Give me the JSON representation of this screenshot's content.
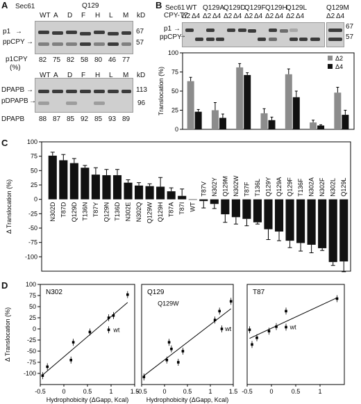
{
  "panelA": {
    "letter": "A",
    "sec61_label": "Sec61",
    "q129_label": "Q129",
    "kd_label": "kD",
    "lanes": [
      "WT",
      "A",
      "D",
      "F",
      "H",
      "L",
      "M"
    ],
    "blot1": {
      "p1_label": "p1",
      "ppcpy_label": "ppCPY",
      "mw_top": "67",
      "mw_bottom": "57",
      "quant_label_1": "p1CPY",
      "quant_label_2": "(%)",
      "quant_values": [
        "82",
        "75",
        "82",
        "58",
        "80",
        "46",
        "77"
      ]
    },
    "blot2": {
      "dpapb_label": "DPAPB",
      "pdpapb_label": "pDPAPB",
      "mw_top": "113",
      "mw_bottom": "96",
      "quant_label": "DPAPB",
      "quant_values": [
        "88",
        "87",
        "85",
        "92",
        "85",
        "93",
        "89"
      ]
    }
  },
  "panelB": {
    "letter": "B",
    "sec61_label": "Sec61",
    "cpy_label": "CPY-T7",
    "groups": [
      "WT",
      "Q129A",
      "Q129D",
      "Q129F",
      "Q129H",
      "Q129L",
      "Q129M"
    ],
    "sub_labels": [
      "Δ2",
      "Δ4"
    ],
    "p1_label": "p1",
    "ppcpy_label": "ppCPY",
    "mw_top": "67",
    "mw_bottom": "57",
    "legend": [
      "Δ2",
      "Δ4"
    ]
  },
  "panelC": {
    "letter": "C"
  },
  "panelD": {
    "letter": "D"
  },
  "colors": {
    "delta2": "#8c8c8c",
    "delta4": "#111111",
    "bar": "#111111"
  },
  "chart_data": [
    {
      "type": "bar",
      "panel": "B",
      "categories": [
        "WT",
        "Q129A",
        "Q129D",
        "Q129F",
        "Q129H",
        "Q129L",
        "Q129M"
      ],
      "series": [
        {
          "name": "Δ2",
          "values": [
            63,
            25,
            81,
            21,
            72,
            9,
            48
          ],
          "errors": [
            5,
            10,
            5,
            6,
            7,
            3,
            7
          ]
        },
        {
          "name": "Δ4",
          "values": [
            23,
            15,
            71,
            12,
            42,
            5,
            19
          ],
          "errors": [
            3,
            5,
            3,
            4,
            8,
            1,
            6
          ]
        }
      ],
      "xlabel": "",
      "ylabel": "Translocation (%)",
      "ylim": [
        0,
        100
      ],
      "yticks": [
        0,
        25,
        50,
        75,
        100
      ],
      "legend_position": "top-right"
    },
    {
      "type": "bar",
      "panel": "C",
      "categories": [
        "N302D",
        "T87D",
        "Q129D",
        "T136N",
        "T87Y",
        "Q129N",
        "T136D",
        "N302E",
        "N302Q",
        "Q129W",
        "Q129H",
        "T87A",
        "T87I",
        "WT",
        "T87V",
        "N302Y",
        "Q129M",
        "N302W",
        "T87F",
        "T136L",
        "Q129Y",
        "Q129A",
        "Q129F",
        "T136F",
        "N302A",
        "N302F",
        "N302L",
        "Q129L"
      ],
      "values": [
        76,
        68,
        63,
        55,
        43,
        42,
        42,
        29,
        24,
        23,
        22,
        14,
        6,
        0,
        -3,
        -8,
        -26,
        -31,
        -34,
        -40,
        -52,
        -56,
        -72,
        -76,
        -79,
        -85,
        -109,
        -108
      ],
      "errors": [
        6,
        10,
        8,
        4,
        12,
        10,
        10,
        5,
        5,
        4,
        16,
        6,
        12,
        0,
        12,
        8,
        14,
        12,
        12,
        3,
        18,
        16,
        12,
        14,
        14,
        4,
        6,
        18
      ],
      "xlabel": "",
      "ylabel": "Δ Translocation (%)",
      "ylim": [
        -125,
        100
      ],
      "yticks": [
        -100,
        -75,
        -50,
        -25,
        0,
        25,
        50,
        75,
        100
      ]
    },
    {
      "type": "scatter",
      "panel": "D",
      "title": "N302",
      "x": [
        -0.45,
        -0.35,
        0.15,
        0.2,
        0.55,
        0.95,
        1.05,
        1.35,
        0.95
      ],
      "y": [
        -105,
        -85,
        -70,
        -30,
        -7,
        25,
        30,
        77,
        -2
      ],
      "xlabel": "Hydrophobicity (ΔGapp, Kcal)",
      "ylabel": "Δ Translocation (%)",
      "xlim": [
        -0.5,
        1.5
      ],
      "ylim": [
        -125,
        100
      ],
      "xticks": [
        -0.5,
        0,
        0.5,
        1,
        1.5
      ],
      "yticks": [
        -100,
        -75,
        -50,
        -25,
        0,
        25,
        50,
        75,
        100
      ],
      "annotations": [
        "wt"
      ]
    },
    {
      "type": "scatter",
      "panel": "D",
      "title": "Q129",
      "x": [
        -0.45,
        0.05,
        0.1,
        0.15,
        0.3,
        0.4,
        1.1,
        1.2,
        1.45,
        1.25
      ],
      "y": [
        -108,
        -70,
        -30,
        -45,
        -75,
        -50,
        20,
        40,
        62,
        0
      ],
      "xlabel": "Hydrophobicity (ΔGapp, Kcal)",
      "xlim": [
        -0.5,
        1.5
      ],
      "ylim": [
        -125,
        100
      ],
      "xticks": [
        -0.5,
        0,
        0.5,
        1,
        1.5
      ],
      "annotations": [
        "Q129W",
        "wt"
      ]
    },
    {
      "type": "scatter",
      "panel": "D",
      "title": "T87",
      "x": [
        -0.45,
        -0.4,
        -0.3,
        -0.05,
        0.1,
        0.3,
        0.3,
        1.35
      ],
      "y": [
        -2,
        -35,
        -20,
        -5,
        5,
        40,
        4,
        68
      ],
      "xlabel": "",
      "xlim": [
        -0.5,
        1.5
      ],
      "ylim": [
        -125,
        100
      ],
      "xticks": [
        -0.5,
        0,
        0.5,
        1
      ],
      "annotations": [
        "wt"
      ]
    }
  ],
  "scatter_labels": {
    "q129w": "Q129W",
    "wt": "wt"
  }
}
